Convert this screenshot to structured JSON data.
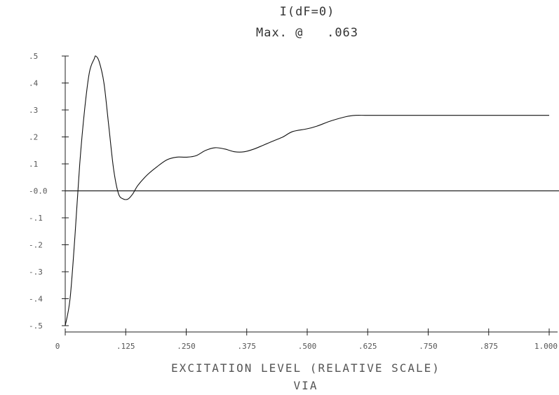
{
  "chart_data": {
    "type": "line",
    "title": "I(dF=0)",
    "subtitle": "Max. @   .063",
    "xlabel": "EXCITATION LEVEL (RELATIVE SCALE)",
    "xlabel2": "VIA",
    "ylabel": "",
    "xlim": [
      0,
      1.0
    ],
    "ylim": [
      -0.5,
      0.5
    ],
    "x_tick_values": [
      0,
      0.125,
      0.25,
      0.375,
      0.5,
      0.625,
      0.75,
      0.875,
      1.0
    ],
    "x_tick_labels": [
      "0",
      ".125",
      ".250",
      ".375",
      ".500",
      ".625",
      ".750",
      ".875",
      "1.000"
    ],
    "y_tick_values": [
      0.5,
      0.4,
      0.3,
      0.2,
      0.1,
      0.0,
      -0.1,
      -0.2,
      -0.3,
      -0.4,
      -0.5
    ],
    "y_tick_labels": [
      ".5",
      ".4",
      ".3",
      ".2",
      ".1",
      "-0.0",
      "-.1",
      "-.2",
      "-.3",
      "-.4",
      "-.5"
    ],
    "grid": false,
    "series": [
      {
        "x": [
          0.0,
          0.01,
          0.02,
          0.03,
          0.04,
          0.05,
          0.06,
          0.063,
          0.07,
          0.08,
          0.09,
          0.1,
          0.11,
          0.12,
          0.13,
          0.14,
          0.15,
          0.17,
          0.19,
          0.21,
          0.23,
          0.25,
          0.27,
          0.29,
          0.31,
          0.33,
          0.35,
          0.37,
          0.39,
          0.41,
          0.43,
          0.45,
          0.47,
          0.5,
          0.52,
          0.55,
          0.58,
          0.6,
          0.62,
          0.65,
          0.7,
          0.75,
          0.8,
          0.85,
          0.9,
          0.95,
          1.0
        ],
        "y": [
          -0.5,
          -0.4,
          -0.17,
          0.1,
          0.3,
          0.44,
          0.49,
          0.5,
          0.48,
          0.4,
          0.24,
          0.08,
          -0.01,
          -0.03,
          -0.03,
          -0.01,
          0.02,
          0.06,
          0.09,
          0.115,
          0.125,
          0.125,
          0.13,
          0.15,
          0.16,
          0.155,
          0.145,
          0.145,
          0.155,
          0.17,
          0.185,
          0.2,
          0.22,
          0.23,
          0.24,
          0.26,
          0.275,
          0.28,
          0.28,
          0.28,
          0.28,
          0.28,
          0.28,
          0.28,
          0.28,
          0.28,
          0.28
        ]
      }
    ]
  }
}
